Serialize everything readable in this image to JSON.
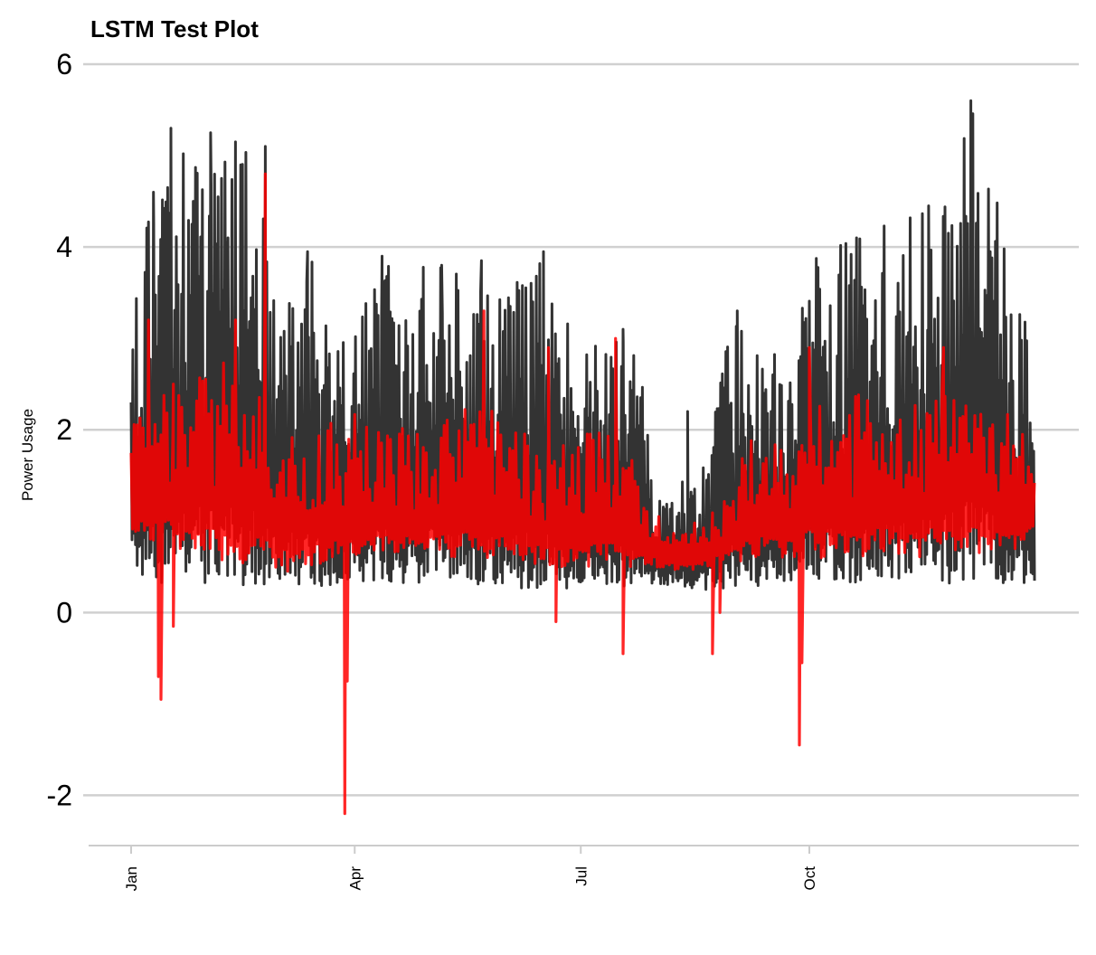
{
  "chart_data": {
    "type": "line",
    "title": "LSTM Test Plot",
    "xlabel": "",
    "ylabel": "Power Usage",
    "x_range": [
      "2019-01-01",
      "2019-12-31"
    ],
    "ylim": [
      -2.55,
      6
    ],
    "y_ticks": [
      -2,
      0,
      2,
      4,
      6
    ],
    "x_ticks": [
      {
        "label": "Jan",
        "date": "2019-01-01"
      },
      {
        "label": "Apr",
        "date": "2019-04-01"
      },
      {
        "label": "Jul",
        "date": "2019-07-01"
      },
      {
        "label": "Oct",
        "date": "2019-10-01"
      }
    ],
    "grid": "horizontal",
    "legend": "none",
    "series": [
      {
        "color": "#333333",
        "anchors": [
          {
            "date": "2019-01-01",
            "min": 0.35,
            "max": 3.2
          },
          {
            "date": "2019-01-05",
            "min": 0.35,
            "max": 4.6
          },
          {
            "date": "2019-01-15",
            "min": 0.3,
            "max": 5.3
          },
          {
            "date": "2019-01-25",
            "min": 0.3,
            "max": 5.3
          },
          {
            "date": "2019-02-05",
            "min": 0.3,
            "max": 5.1
          },
          {
            "date": "2019-02-20",
            "min": 0.3,
            "max": 5.1
          },
          {
            "date": "2019-03-01",
            "min": 0.3,
            "max": 3.5
          },
          {
            "date": "2019-03-15",
            "min": 0.28,
            "max": 3.9
          },
          {
            "date": "2019-03-25",
            "min": 0.28,
            "max": 3.0
          },
          {
            "date": "2019-04-10",
            "min": 0.3,
            "max": 3.8
          },
          {
            "date": "2019-05-01",
            "min": 0.3,
            "max": 3.8
          },
          {
            "date": "2019-05-15",
            "min": 0.3,
            "max": 3.8
          },
          {
            "date": "2019-06-01",
            "min": 0.28,
            "max": 3.5
          },
          {
            "date": "2019-06-15",
            "min": 0.25,
            "max": 3.9
          },
          {
            "date": "2019-07-01",
            "min": 0.25,
            "max": 2.8
          },
          {
            "date": "2019-07-15",
            "min": 0.25,
            "max": 3.1
          },
          {
            "date": "2019-07-25",
            "min": 0.3,
            "max": 2.8
          },
          {
            "date": "2019-08-01",
            "min": 0.3,
            "max": 1.3
          },
          {
            "date": "2019-08-20",
            "min": 0.25,
            "max": 1.6
          },
          {
            "date": "2019-08-31",
            "min": 0.25,
            "max": 3.3
          },
          {
            "date": "2019-09-10",
            "min": 0.25,
            "max": 3.0
          },
          {
            "date": "2019-09-25",
            "min": 0.25,
            "max": 2.7
          },
          {
            "date": "2019-10-01",
            "min": 0.3,
            "max": 4.0
          },
          {
            "date": "2019-10-20",
            "min": 0.3,
            "max": 4.1
          },
          {
            "date": "2019-11-05",
            "min": 0.3,
            "max": 4.3
          },
          {
            "date": "2019-11-20",
            "min": 0.3,
            "max": 4.4
          },
          {
            "date": "2019-12-05",
            "min": 0.3,
            "max": 5.6
          },
          {
            "date": "2019-12-31",
            "min": 0.3,
            "max": 2.9
          }
        ],
        "peaks": [
          {
            "date": "2019-01-10",
            "value": 4.6
          },
          {
            "date": "2019-01-17",
            "value": 5.3
          },
          {
            "date": "2019-01-26",
            "value": 4.5
          },
          {
            "date": "2019-02-02",
            "value": 5.25
          },
          {
            "date": "2019-02-09",
            "value": 4.1
          },
          {
            "date": "2019-02-12",
            "value": 5.15
          },
          {
            "date": "2019-02-24",
            "value": 5.1
          },
          {
            "date": "2019-03-13",
            "value": 3.95
          },
          {
            "date": "2019-04-12",
            "value": 3.9
          },
          {
            "date": "2019-05-06",
            "value": 3.8
          },
          {
            "date": "2019-05-22",
            "value": 3.85
          },
          {
            "date": "2019-06-16",
            "value": 3.95
          },
          {
            "date": "2019-07-18",
            "value": 3.1
          },
          {
            "date": "2019-08-13",
            "value": 2.2
          },
          {
            "date": "2019-09-02",
            "value": 3.3
          },
          {
            "date": "2019-10-20",
            "value": 4.1
          },
          {
            "date": "2019-11-18",
            "value": 4.45
          },
          {
            "date": "2019-11-26",
            "value": 4.15
          },
          {
            "date": "2019-12-05",
            "value": 5.6
          }
        ]
      },
      {
        "color": "#ff0000",
        "anchors": [
          {
            "date": "2019-01-01",
            "min": 0.8,
            "max": 2.2
          },
          {
            "date": "2019-01-15",
            "min": 0.7,
            "max": 2.5
          },
          {
            "date": "2019-02-01",
            "min": 0.6,
            "max": 2.6
          },
          {
            "date": "2019-02-20",
            "min": 0.5,
            "max": 3.2
          },
          {
            "date": "2019-03-01",
            "min": 0.4,
            "max": 1.9
          },
          {
            "date": "2019-04-01",
            "min": 0.6,
            "max": 2.2
          },
          {
            "date": "2019-05-01",
            "min": 0.6,
            "max": 2.0
          },
          {
            "date": "2019-05-20",
            "min": 0.6,
            "max": 2.3
          },
          {
            "date": "2019-06-15",
            "min": 0.5,
            "max": 1.9
          },
          {
            "date": "2019-07-15",
            "min": 0.5,
            "max": 2.0
          },
          {
            "date": "2019-07-31",
            "min": 0.5,
            "max": 1.2
          },
          {
            "date": "2019-08-10",
            "min": 0.45,
            "max": 0.9
          },
          {
            "date": "2019-08-25",
            "min": 0.5,
            "max": 1.2
          },
          {
            "date": "2019-09-10",
            "min": 0.6,
            "max": 2.0
          },
          {
            "date": "2019-09-25",
            "min": 0.6,
            "max": 1.7
          },
          {
            "date": "2019-10-01",
            "min": 0.6,
            "max": 2.3
          },
          {
            "date": "2019-11-15",
            "min": 0.6,
            "max": 2.5
          },
          {
            "date": "2019-12-31",
            "min": 0.7,
            "max": 2.1
          }
        ],
        "peaks": [
          {
            "date": "2019-01-08",
            "value": 3.2
          },
          {
            "date": "2019-01-18",
            "value": 2.5
          },
          {
            "date": "2019-02-12",
            "value": 3.2
          },
          {
            "date": "2019-02-24",
            "value": 4.8
          },
          {
            "date": "2019-05-23",
            "value": 3.3
          },
          {
            "date": "2019-06-18",
            "value": 2.9
          },
          {
            "date": "2019-07-15",
            "value": 3.0
          },
          {
            "date": "2019-10-01",
            "value": 2.9
          },
          {
            "date": "2019-11-24",
            "value": 2.9
          }
        ],
        "dips": [
          {
            "date": "2019-01-12",
            "value": -0.7
          },
          {
            "date": "2019-01-13",
            "value": -0.95
          },
          {
            "date": "2019-01-18",
            "value": -0.15
          },
          {
            "date": "2019-03-28",
            "value": -2.2
          },
          {
            "date": "2019-03-29",
            "value": -0.75
          },
          {
            "date": "2019-06-21",
            "value": -0.1
          },
          {
            "date": "2019-07-18",
            "value": -0.45
          },
          {
            "date": "2019-08-23",
            "value": -0.45
          },
          {
            "date": "2019-08-26",
            "value": 0.0
          },
          {
            "date": "2019-09-27",
            "value": -1.45
          },
          {
            "date": "2019-09-28",
            "value": -0.55
          }
        ]
      }
    ]
  }
}
